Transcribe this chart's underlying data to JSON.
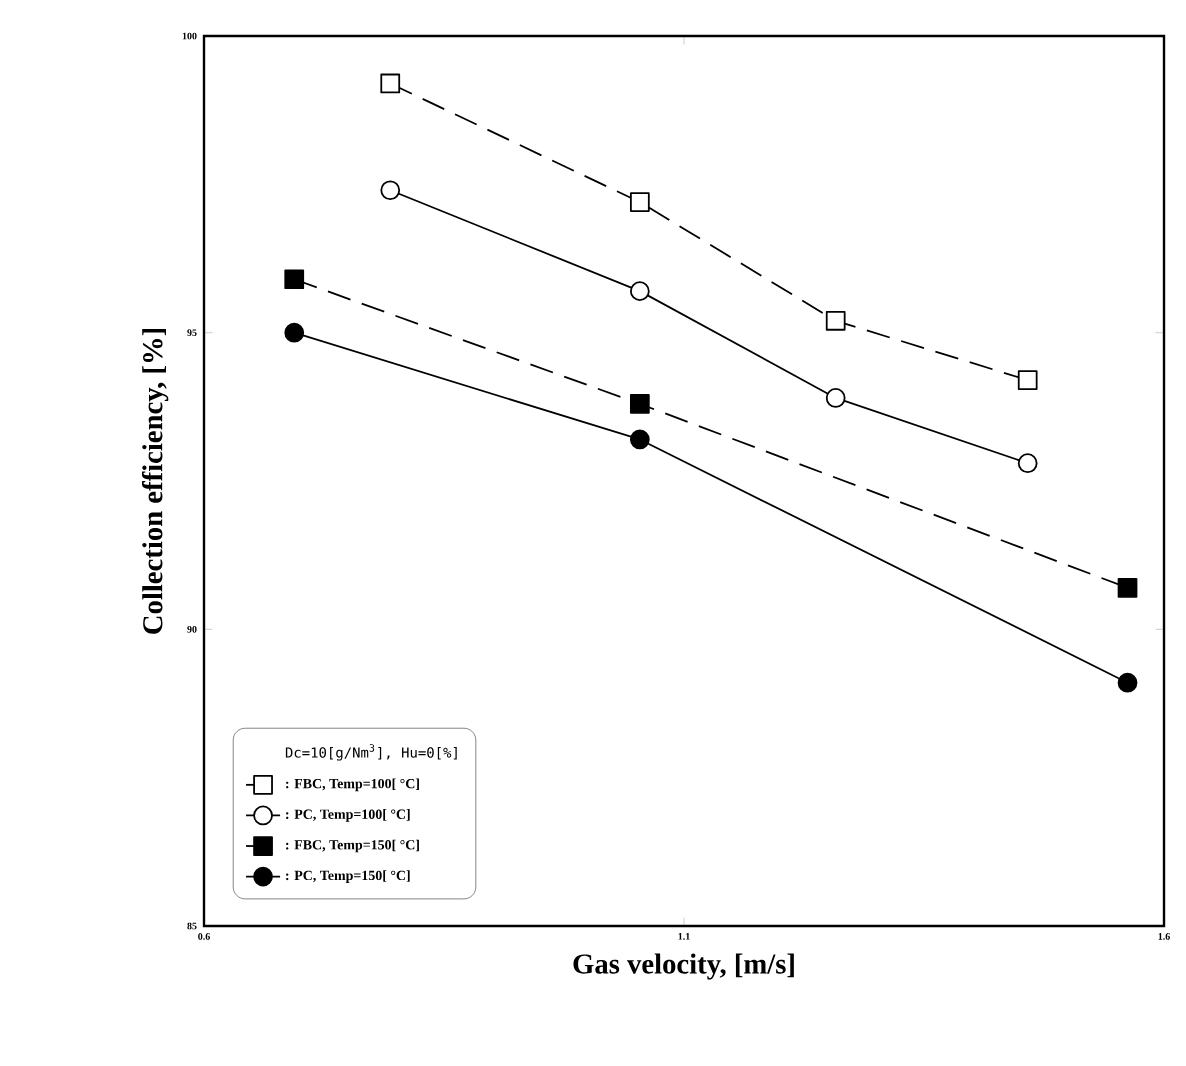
{
  "chart_data": {
    "type": "line",
    "xlabel": "Gas velocity, [m/s]",
    "ylabel": "Collection efficiency, [%]",
    "legend_title": "Dc=10[g/Nm$^{3}$], Hu=0[%]",
    "xlim": [
      0.6,
      1.6
    ],
    "ylim": [
      85,
      100
    ],
    "xticks": [
      0.6,
      1.1,
      1.6
    ],
    "yticks": [
      85,
      90,
      95,
      100
    ],
    "grid": false,
    "legend": "bottom left",
    "series": [
      {
        "name": ": FBC, Temp=100[ °C]",
        "color": "#000000",
        "marker": "square",
        "line_style": "dashed",
        "x": [
          0.794,
          1.054,
          1.258,
          1.458
        ],
        "values": [
          99.2,
          97.2,
          95.2,
          94.2
        ]
      },
      {
        "name": ": PC, Temp=100[ °C]",
        "color": "#000000",
        "marker": "circle",
        "line_style": "solid",
        "x": [
          0.794,
          1.054,
          1.258,
          1.458
        ],
        "values": [
          97.4,
          95.7,
          93.9,
          92.8
        ]
      },
      {
        "name": ": FBC, Temp=150[ °C]",
        "color": "#000000",
        "marker": "square",
        "line_style": "dashed",
        "x": [
          0.694,
          1.054,
          1.562
        ],
        "values": [
          95.9,
          93.8,
          90.7
        ]
      },
      {
        "name": ": PC, Temp=150[ °C]",
        "color": "#000000",
        "marker": "circle",
        "line_style": "solid",
        "x": [
          0.694,
          1.054,
          1.562
        ],
        "values": [
          95.0,
          93.2,
          89.1
        ]
      }
    ]
  }
}
